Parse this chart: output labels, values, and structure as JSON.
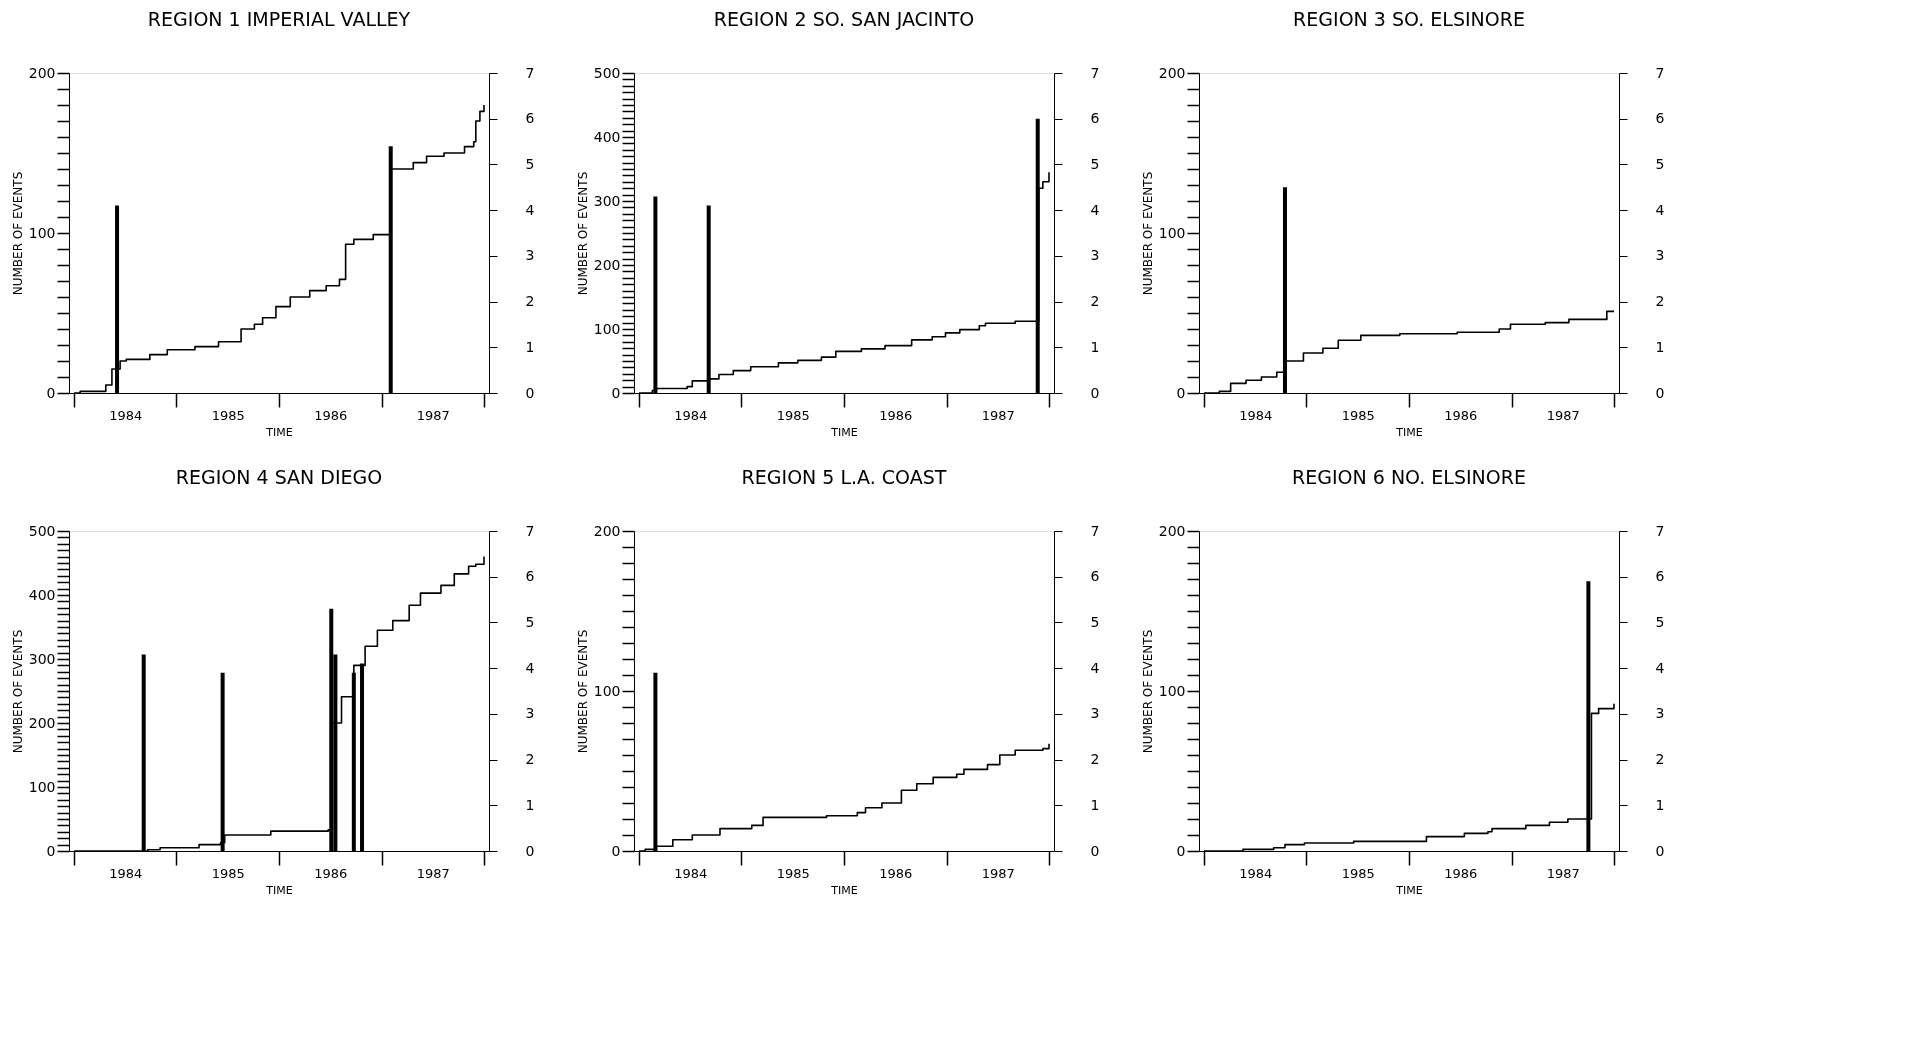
{
  "chart_data": [
    {
      "type": "step",
      "title": "REGION 1 IMPERIAL VALLEY",
      "xlabel": "TIME",
      "ylabel": "NUMBER OF EVENTS",
      "xlim": [
        1984,
        1988
      ],
      "xticks": [
        {
          "value": 1984,
          "label": null
        },
        {
          "value": 1984.5,
          "label": "1984"
        },
        {
          "value": 1985,
          "label": null
        },
        {
          "value": 1985.5,
          "label": "1985"
        },
        {
          "value": 1986,
          "label": null
        },
        {
          "value": 1986.5,
          "label": "1986"
        },
        {
          "value": 1987,
          "label": null
        },
        {
          "value": 1987.5,
          "label": "1987"
        },
        {
          "value": 1988,
          "label": null
        }
      ],
      "ylim": [
        0,
        200
      ],
      "yticks": [
        0,
        {
          "value": 10,
          "label": null
        },
        {
          "value": 20,
          "label": null
        },
        {
          "value": 30,
          "label": null
        },
        {
          "value": 40,
          "label": null
        },
        {
          "value": 50,
          "label": null
        },
        {
          "value": 60,
          "label": null
        },
        {
          "value": 70,
          "label": null
        },
        {
          "value": 80,
          "label": null
        },
        {
          "value": 90,
          "label": null
        },
        100,
        {
          "value": 110,
          "label": null
        },
        {
          "value": 120,
          "label": null
        },
        {
          "value": 130,
          "label": null
        },
        {
          "value": 140,
          "label": null
        },
        {
          "value": 150,
          "label": null
        },
        {
          "value": 160,
          "label": null
        },
        {
          "value": 170,
          "label": null
        },
        {
          "value": 180,
          "label": null
        },
        {
          "value": 190,
          "label": null
        },
        200
      ],
      "y2lim": [
        0,
        7
      ],
      "y2ticks": [
        0,
        1,
        2,
        3,
        4,
        5,
        6,
        7
      ],
      "series": [
        {
          "type": "step",
          "color": "#000000",
          "x": [
            1984.0,
            1984.06,
            1984.31,
            1984.37,
            1984.45,
            1984.51,
            1984.74,
            1984.91,
            1985.18,
            1985.41,
            1985.63,
            1985.76,
            1985.84,
            1985.97,
            1986.11,
            1986.3,
            1986.46,
            1986.59,
            1986.65,
            1986.73,
            1986.92,
            1987.09,
            1987.31,
            1987.44,
            1987.61,
            1987.81,
            1987.9,
            1987.92,
            1987.96,
            1988.0
          ],
          "values": [
            0,
            1,
            5,
            15,
            20,
            21,
            24,
            27,
            29,
            32,
            40,
            43,
            47,
            54,
            60,
            64,
            67,
            71,
            93,
            96,
            99,
            140,
            144,
            148,
            150,
            154,
            157,
            170,
            176,
            180
          ]
        },
        {
          "type": "bar",
          "axis": "y2",
          "color": "#000000",
          "x": [
            1984.42,
            1987.09
          ],
          "values": [
            4.1,
            5.4
          ]
        }
      ]
    },
    {
      "type": "step",
      "title": "REGION 2 SO. SAN JACINTO",
      "xlabel": "TIME",
      "ylabel": "NUMBER OF EVENTS",
      "xlim": [
        1984,
        1988
      ],
      "xticks": [
        {
          "value": 1984,
          "label": null
        },
        {
          "value": 1984.5,
          "label": "1984"
        },
        {
          "value": 1985,
          "label": null
        },
        {
          "value": 1985.5,
          "label": "1985"
        },
        {
          "value": 1986,
          "label": null
        },
        {
          "value": 1986.5,
          "label": "1986"
        },
        {
          "value": 1987,
          "label": null
        },
        {
          "value": 1987.5,
          "label": "1987"
        },
        {
          "value": 1988,
          "label": null
        }
      ],
      "ylim": [
        0,
        500
      ],
      "yticks": [
        0,
        {
          "value": 10,
          "label": null
        },
        {
          "value": 20,
          "label": null
        },
        {
          "value": 30,
          "label": null
        },
        {
          "value": 40,
          "label": null
        },
        {
          "value": 50,
          "label": null
        },
        {
          "value": 60,
          "label": null
        },
        {
          "value": 70,
          "label": null
        },
        {
          "value": 80,
          "label": null
        },
        {
          "value": 90,
          "label": null
        },
        100,
        {
          "value": 110,
          "label": null
        },
        {
          "value": 120,
          "label": null
        },
        {
          "value": 130,
          "label": null
        },
        {
          "value": 140,
          "label": null
        },
        {
          "value": 150,
          "label": null
        },
        {
          "value": 160,
          "label": null
        },
        {
          "value": 170,
          "label": null
        },
        {
          "value": 180,
          "label": null
        },
        {
          "value": 190,
          "label": null
        },
        200,
        {
          "value": 210,
          "label": null
        },
        {
          "value": 220,
          "label": null
        },
        {
          "value": 230,
          "label": null
        },
        {
          "value": 240,
          "label": null
        },
        {
          "value": 250,
          "label": null
        },
        {
          "value": 260,
          "label": null
        },
        {
          "value": 270,
          "label": null
        },
        {
          "value": 280,
          "label": null
        },
        {
          "value": 290,
          "label": null
        },
        300,
        {
          "value": 310,
          "label": null
        },
        {
          "value": 320,
          "label": null
        },
        {
          "value": 330,
          "label": null
        },
        {
          "value": 340,
          "label": null
        },
        {
          "value": 350,
          "label": null
        },
        {
          "value": 360,
          "label": null
        },
        {
          "value": 370,
          "label": null
        },
        {
          "value": 380,
          "label": null
        },
        {
          "value": 390,
          "label": null
        },
        400,
        {
          "value": 410,
          "label": null
        },
        {
          "value": 420,
          "label": null
        },
        {
          "value": 430,
          "label": null
        },
        {
          "value": 440,
          "label": null
        },
        {
          "value": 450,
          "label": null
        },
        {
          "value": 460,
          "label": null
        },
        {
          "value": 470,
          "label": null
        },
        {
          "value": 480,
          "label": null
        },
        {
          "value": 490,
          "label": null
        },
        500
      ],
      "y2lim": [
        0,
        7
      ],
      "y2ticks": [
        0,
        1,
        2,
        3,
        4,
        5,
        6,
        7
      ],
      "series": [
        {
          "type": "step",
          "color": "#000000",
          "x": [
            1984.0,
            1984.13,
            1984.17,
            1984.47,
            1984.52,
            1984.67,
            1984.78,
            1984.92,
            1985.09,
            1985.36,
            1985.55,
            1985.78,
            1985.92,
            1986.17,
            1986.4,
            1986.66,
            1986.86,
            1986.99,
            1987.13,
            1987.32,
            1987.38,
            1987.67,
            1987.9,
            1987.94,
            1988.0
          ],
          "values": [
            0,
            4,
            7,
            10,
            19,
            22,
            29,
            35,
            41,
            47,
            51,
            56,
            65,
            69,
            74,
            83,
            88,
            94,
            99,
            105,
            109,
            112,
            320,
            330,
            345
          ]
        },
        {
          "type": "bar",
          "axis": "y2",
          "color": "#000000",
          "x": [
            1984.16,
            1984.68,
            1987.89
          ],
          "values": [
            4.3,
            4.1,
            6.0
          ]
        }
      ]
    },
    {
      "type": "step",
      "title": "REGION 3 SO. ELSINORE",
      "xlabel": "TIME",
      "ylabel": "NUMBER OF EVENTS",
      "xlim": [
        1984,
        1988
      ],
      "xticks": [
        {
          "value": 1984,
          "label": null
        },
        {
          "value": 1984.5,
          "label": "1984"
        },
        {
          "value": 1985,
          "label": null
        },
        {
          "value": 1985.5,
          "label": "1985"
        },
        {
          "value": 1986,
          "label": null
        },
        {
          "value": 1986.5,
          "label": "1986"
        },
        {
          "value": 1987,
          "label": null
        },
        {
          "value": 1987.5,
          "label": "1987"
        },
        {
          "value": 1988,
          "label": null
        }
      ],
      "ylim": [
        0,
        200
      ],
      "yticks": [
        0,
        {
          "value": 10,
          "label": null
        },
        {
          "value": 20,
          "label": null
        },
        {
          "value": 30,
          "label": null
        },
        {
          "value": 40,
          "label": null
        },
        {
          "value": 50,
          "label": null
        },
        {
          "value": 60,
          "label": null
        },
        {
          "value": 70,
          "label": null
        },
        {
          "value": 80,
          "label": null
        },
        {
          "value": 90,
          "label": null
        },
        100,
        {
          "value": 110,
          "label": null
        },
        {
          "value": 120,
          "label": null
        },
        {
          "value": 130,
          "label": null
        },
        {
          "value": 140,
          "label": null
        },
        {
          "value": 150,
          "label": null
        },
        {
          "value": 160,
          "label": null
        },
        {
          "value": 170,
          "label": null
        },
        {
          "value": 180,
          "label": null
        },
        {
          "value": 190,
          "label": null
        },
        200
      ],
      "y2lim": [
        0,
        7
      ],
      "y2ticks": [
        0,
        1,
        2,
        3,
        4,
        5,
        6,
        7
      ],
      "series": [
        {
          "type": "step",
          "color": "#000000",
          "x": [
            1984.0,
            1984.15,
            1984.26,
            1984.41,
            1984.56,
            1984.71,
            1984.79,
            1984.97,
            1985.16,
            1985.31,
            1985.53,
            1985.91,
            1986.47,
            1986.88,
            1986.99,
            1987.33,
            1987.56,
            1987.93,
            1988.0
          ],
          "values": [
            0,
            1,
            6,
            8,
            10,
            13,
            20,
            25,
            28,
            33,
            36,
            37,
            38,
            40,
            43,
            44,
            46,
            51,
            51
          ]
        },
        {
          "type": "bar",
          "axis": "y2",
          "color": "#000000",
          "x": [
            1984.79
          ],
          "values": [
            4.5
          ]
        }
      ]
    },
    {
      "type": "step",
      "title": "REGION 4 SAN DIEGO",
      "xlabel": "TIME",
      "ylabel": "NUMBER OF EVENTS",
      "xlim": [
        1984,
        1988
      ],
      "xticks": [
        {
          "value": 1984,
          "label": null
        },
        {
          "value": 1984.5,
          "label": "1984"
        },
        {
          "value": 1985,
          "label": null
        },
        {
          "value": 1985.5,
          "label": "1985"
        },
        {
          "value": 1986,
          "label": null
        },
        {
          "value": 1986.5,
          "label": "1986"
        },
        {
          "value": 1987,
          "label": null
        },
        {
          "value": 1987.5,
          "label": "1987"
        },
        {
          "value": 1988,
          "label": null
        }
      ],
      "ylim": [
        0,
        500
      ],
      "yticks": [
        0,
        {
          "value": 10,
          "label": null
        },
        {
          "value": 20,
          "label": null
        },
        {
          "value": 30,
          "label": null
        },
        {
          "value": 40,
          "label": null
        },
        {
          "value": 50,
          "label": null
        },
        {
          "value": 60,
          "label": null
        },
        {
          "value": 70,
          "label": null
        },
        {
          "value": 80,
          "label": null
        },
        {
          "value": 90,
          "label": null
        },
        100,
        {
          "value": 110,
          "label": null
        },
        {
          "value": 120,
          "label": null
        },
        {
          "value": 130,
          "label": null
        },
        {
          "value": 140,
          "label": null
        },
        {
          "value": 150,
          "label": null
        },
        {
          "value": 160,
          "label": null
        },
        {
          "value": 170,
          "label": null
        },
        {
          "value": 180,
          "label": null
        },
        {
          "value": 190,
          "label": null
        },
        200,
        {
          "value": 210,
          "label": null
        },
        {
          "value": 220,
          "label": null
        },
        {
          "value": 230,
          "label": null
        },
        {
          "value": 240,
          "label": null
        },
        {
          "value": 250,
          "label": null
        },
        {
          "value": 260,
          "label": null
        },
        {
          "value": 270,
          "label": null
        },
        {
          "value": 280,
          "label": null
        },
        {
          "value": 290,
          "label": null
        },
        300,
        {
          "value": 310,
          "label": null
        },
        {
          "value": 320,
          "label": null
        },
        {
          "value": 330,
          "label": null
        },
        {
          "value": 340,
          "label": null
        },
        {
          "value": 350,
          "label": null
        },
        {
          "value": 360,
          "label": null
        },
        {
          "value": 370,
          "label": null
        },
        {
          "value": 380,
          "label": null
        },
        {
          "value": 390,
          "label": null
        },
        400,
        {
          "value": 410,
          "label": null
        },
        {
          "value": 420,
          "label": null
        },
        {
          "value": 430,
          "label": null
        },
        {
          "value": 440,
          "label": null
        },
        {
          "value": 450,
          "label": null
        },
        {
          "value": 460,
          "label": null
        },
        {
          "value": 470,
          "label": null
        },
        {
          "value": 480,
          "label": null
        },
        {
          "value": 490,
          "label": null
        },
        500
      ],
      "y2lim": [
        0,
        7
      ],
      "y2ticks": [
        0,
        1,
        2,
        3,
        4,
        5,
        6,
        7
      ],
      "series": [
        {
          "type": "step",
          "color": "#000000",
          "x": [
            1984.0,
            1984.66,
            1984.72,
            1984.84,
            1985.22,
            1985.43,
            1985.47,
            1985.92,
            1986.48,
            1986.52,
            1986.61,
            1986.73,
            1986.84,
            1986.96,
            1987.11,
            1987.27,
            1987.38,
            1987.58,
            1987.71,
            1987.85,
            1987.92,
            1988.0
          ],
          "values": [
            0,
            0,
            2,
            5,
            10,
            13,
            25,
            31,
            33,
            200,
            241,
            290,
            320,
            345,
            360,
            384,
            403,
            415,
            433,
            445,
            448,
            460
          ]
        },
        {
          "type": "bar",
          "axis": "y2",
          "color": "#000000",
          "x": [
            1984.68,
            1985.45,
            1986.51,
            1986.55,
            1986.73,
            1986.81
          ],
          "values": [
            4.3,
            3.9,
            5.3,
            4.3,
            3.9,
            4.1
          ]
        }
      ]
    },
    {
      "type": "step",
      "title": "REGION 5  L.A. COAST",
      "xlabel": "TIME",
      "ylabel": "NUMBER OF EVENTS",
      "xlim": [
        1984,
        1988
      ],
      "xticks": [
        {
          "value": 1984,
          "label": null
        },
        {
          "value": 1984.5,
          "label": "1984"
        },
        {
          "value": 1985,
          "label": null
        },
        {
          "value": 1985.5,
          "label": "1985"
        },
        {
          "value": 1986,
          "label": null
        },
        {
          "value": 1986.5,
          "label": "1986"
        },
        {
          "value": 1987,
          "label": null
        },
        {
          "value": 1987.5,
          "label": "1987"
        },
        {
          "value": 1988,
          "label": null
        }
      ],
      "ylim": [
        0,
        200
      ],
      "yticks": [
        0,
        {
          "value": 10,
          "label": null
        },
        {
          "value": 20,
          "label": null
        },
        {
          "value": 30,
          "label": null
        },
        {
          "value": 40,
          "label": null
        },
        {
          "value": 50,
          "label": null
        },
        {
          "value": 60,
          "label": null
        },
        {
          "value": 70,
          "label": null
        },
        {
          "value": 80,
          "label": null
        },
        {
          "value": 90,
          "label": null
        },
        100,
        {
          "value": 110,
          "label": null
        },
        {
          "value": 120,
          "label": null
        },
        {
          "value": 130,
          "label": null
        },
        {
          "value": 140,
          "label": null
        },
        {
          "value": 150,
          "label": null
        },
        {
          "value": 160,
          "label": null
        },
        {
          "value": 170,
          "label": null
        },
        {
          "value": 180,
          "label": null
        },
        {
          "value": 190,
          "label": null
        },
        200
      ],
      "y2lim": [
        0,
        7
      ],
      "y2ticks": [
        0,
        1,
        2,
        3,
        4,
        5,
        6,
        7
      ],
      "series": [
        {
          "type": "step",
          "color": "#000000",
          "x": [
            1984.0,
            1984.06,
            1984.17,
            1984.33,
            1984.52,
            1984.79,
            1985.1,
            1985.21,
            1985.83,
            1986.13,
            1986.21,
            1986.37,
            1986.56,
            1986.71,
            1986.87,
            1987.1,
            1987.17,
            1987.4,
            1987.52,
            1987.67,
            1987.94,
            1988.0
          ],
          "values": [
            0,
            1,
            3,
            7,
            10,
            14,
            16,
            21,
            22,
            24,
            27,
            30,
            38,
            42,
            46,
            48,
            51,
            54,
            60,
            63,
            64,
            67
          ]
        },
        {
          "type": "bar",
          "axis": "y2",
          "color": "#000000",
          "x": [
            1984.16
          ],
          "values": [
            3.9
          ]
        }
      ]
    },
    {
      "type": "step",
      "title": "REGION 6  NO. ELSINORE",
      "xlabel": "TIME",
      "ylabel": "NUMBER OF EVENTS",
      "xlim": [
        1984,
        1988
      ],
      "xticks": [
        {
          "value": 1984,
          "label": null
        },
        {
          "value": 1984.5,
          "label": "1984"
        },
        {
          "value": 1985,
          "label": null
        },
        {
          "value": 1985.5,
          "label": "1985"
        },
        {
          "value": 1986,
          "label": null
        },
        {
          "value": 1986.5,
          "label": "1986"
        },
        {
          "value": 1987,
          "label": null
        },
        {
          "value": 1987.5,
          "label": "1987"
        },
        {
          "value": 1988,
          "label": null
        }
      ],
      "ylim": [
        0,
        200
      ],
      "yticks": [
        0,
        {
          "value": 10,
          "label": null
        },
        {
          "value": 20,
          "label": null
        },
        {
          "value": 30,
          "label": null
        },
        {
          "value": 40,
          "label": null
        },
        {
          "value": 50,
          "label": null
        },
        {
          "value": 60,
          "label": null
        },
        {
          "value": 70,
          "label": null
        },
        {
          "value": 80,
          "label": null
        },
        {
          "value": 90,
          "label": null
        },
        100,
        {
          "value": 110,
          "label": null
        },
        {
          "value": 120,
          "label": null
        },
        {
          "value": 130,
          "label": null
        },
        {
          "value": 140,
          "label": null
        },
        {
          "value": 150,
          "label": null
        },
        {
          "value": 160,
          "label": null
        },
        {
          "value": 170,
          "label": null
        },
        {
          "value": 180,
          "label": null
        },
        {
          "value": 190,
          "label": null
        },
        200
      ],
      "y2lim": [
        0,
        7
      ],
      "y2ticks": [
        0,
        1,
        2,
        3,
        4,
        5,
        6,
        7
      ],
      "series": [
        {
          "type": "step",
          "color": "#000000",
          "x": [
            1984.0,
            1984.38,
            1984.68,
            1984.79,
            1984.98,
            1985.46,
            1986.13,
            1986.17,
            1986.54,
            1986.77,
            1986.81,
            1987.14,
            1987.37,
            1987.55,
            1987.78,
            1987.85,
            1988.0
          ],
          "values": [
            0,
            1,
            2,
            4,
            5,
            6,
            6,
            9,
            11,
            12,
            14,
            16,
            18,
            20,
            86,
            89,
            92
          ]
        },
        {
          "type": "bar",
          "axis": "y2",
          "color": "#000000",
          "x": [
            1987.75
          ],
          "values": [
            5.9
          ]
        }
      ]
    }
  ]
}
